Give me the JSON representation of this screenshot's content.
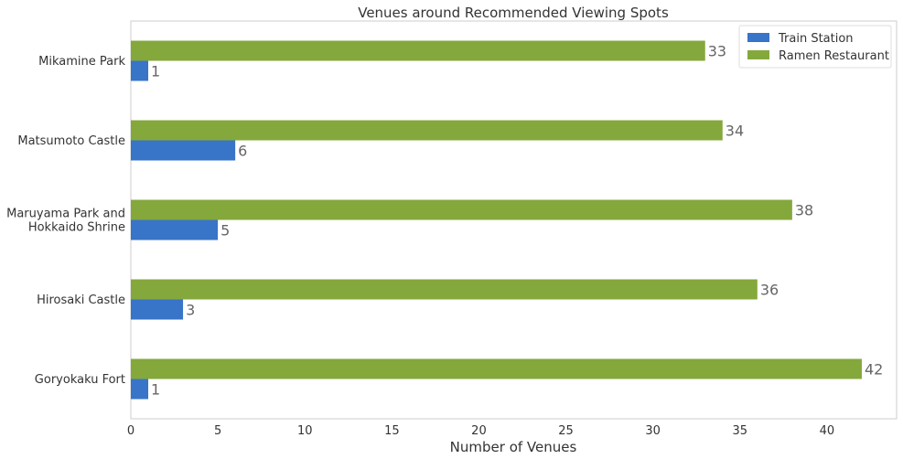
{
  "chart_data": {
    "type": "bar",
    "orientation": "horizontal",
    "title": "Venues around Recommended Viewing Spots",
    "xlabel": "Number of Venues",
    "ylabel": "",
    "xlim": [
      0,
      44
    ],
    "xticks": [
      0,
      5,
      10,
      15,
      20,
      25,
      30,
      35,
      40
    ],
    "grid": false,
    "legend_position": "top-right",
    "categories": [
      [
        "Goryokaku Fort"
      ],
      [
        "Hirosaki Castle"
      ],
      [
        "Maruyama Park and",
        "Hokkaido Shrine"
      ],
      [
        "Matsumoto Castle"
      ],
      [
        "Mikamine Park"
      ]
    ],
    "series": [
      {
        "name": "Train Station",
        "color": "#3874c8",
        "values": [
          1,
          3,
          5,
          6,
          1
        ]
      },
      {
        "name": "Ramen Restaurant",
        "color": "#84a83c",
        "values": [
          42,
          36,
          38,
          34,
          33
        ]
      }
    ]
  }
}
